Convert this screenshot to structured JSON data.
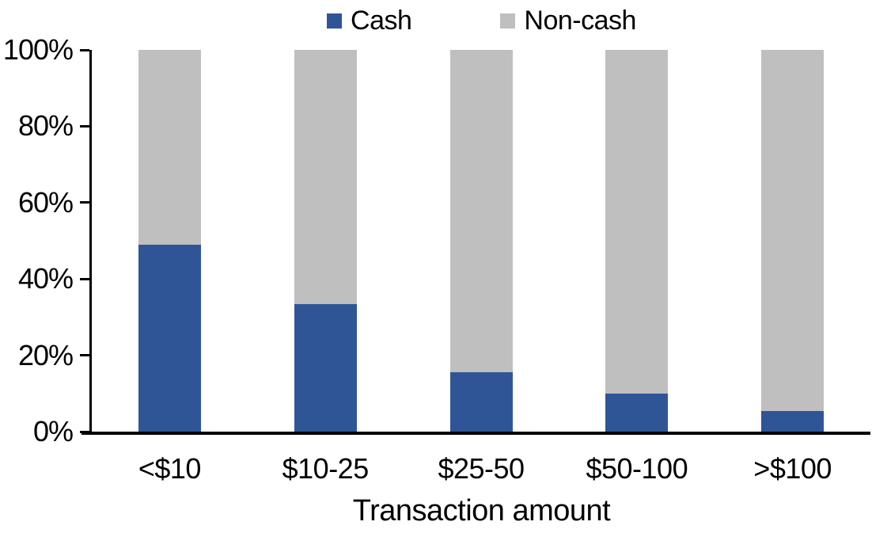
{
  "chart_data": {
    "type": "bar",
    "stacked": true,
    "percent_stacked": true,
    "title": "",
    "xlabel": "Transaction amount",
    "ylabel": "",
    "categories": [
      "<$10",
      "$10-25",
      "$25-50",
      "$50-100",
      ">$100"
    ],
    "series": [
      {
        "name": "Cash",
        "color": "#2F5597",
        "values": [
          49,
          33.5,
          15.5,
          10,
          5.5
        ]
      },
      {
        "name": "Non-cash",
        "color": "#BFBFBF",
        "values": [
          51,
          66.5,
          84.5,
          90,
          94.5
        ]
      }
    ],
    "y_axis": {
      "min": 0,
      "max": 100,
      "tick_values": [
        0,
        20,
        40,
        60,
        80,
        100
      ],
      "ticks": [
        "0%",
        "20%",
        "40%",
        "60%",
        "80%",
        "100%"
      ]
    },
    "legend_position": "top-center",
    "grid": false,
    "axis_color": "#000000"
  }
}
